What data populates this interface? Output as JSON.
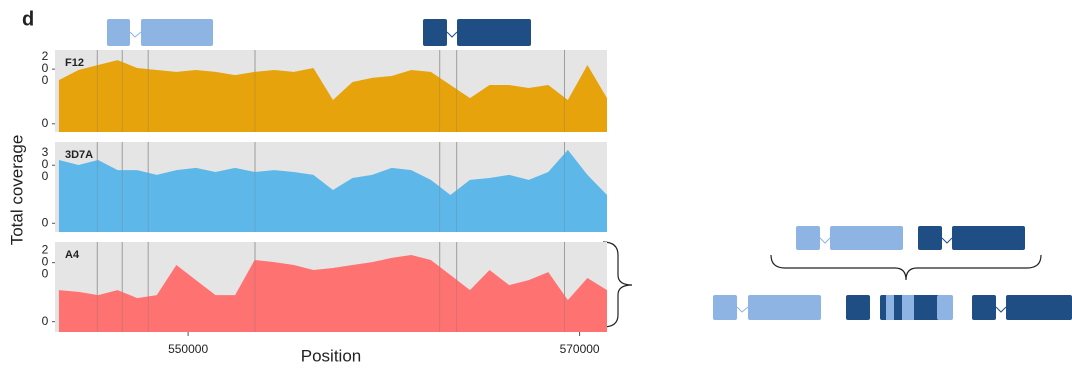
{
  "panel_label": "d",
  "chart_data": {
    "type": "area",
    "xlabel": "Position",
    "ylabel": "Total coverage",
    "x": [
      543400,
      544400,
      545400,
      546400,
      547400,
      548400,
      549400,
      550400,
      551400,
      552400,
      553400,
      554400,
      555400,
      556400,
      557400,
      558400,
      559400,
      560400,
      561400,
      562400,
      563400,
      564400,
      565400,
      566400,
      567400,
      568400,
      569400,
      570400,
      571400
    ],
    "xlim": [
      543200,
      571400
    ],
    "xticks": [
      550000,
      570000
    ],
    "guide_lines": [
      545357,
      546633,
      547959,
      553418,
      562857,
      563724,
      569235
    ],
    "panel_background": "#e5e5e5",
    "series": [
      {
        "name": "F12",
        "color": "#e69f00",
        "ylim": [
          -30,
          270
        ],
        "yticks": [
          0,
          200
        ],
        "values": [
          160,
          197,
          215,
          233,
          204,
          197,
          190,
          197,
          190,
          178,
          190,
          197,
          190,
          204,
          87,
          153,
          168,
          175,
          197,
          190,
          142,
          94,
          142,
          142,
          131,
          142,
          87,
          215,
          94
        ]
      },
      {
        "name": "3D7A",
        "color": "#56b4e9",
        "ylim": [
          -45,
          420
        ],
        "yticks": [
          0,
          300
        ],
        "values": [
          327,
          301,
          327,
          275,
          275,
          250,
          275,
          286,
          265,
          286,
          265,
          275,
          265,
          250,
          172,
          234,
          250,
          286,
          275,
          224,
          146,
          224,
          234,
          250,
          224,
          265,
          379,
          250,
          146
        ]
      },
      {
        "name": "A4",
        "color": "#ff6b6b",
        "ylim": [
          -35,
          270
        ],
        "yticks": [
          0,
          200
        ],
        "values": [
          107,
          101,
          90,
          107,
          80,
          90,
          192,
          141,
          90,
          90,
          209,
          202,
          192,
          175,
          182,
          192,
          202,
          216,
          226,
          209,
          158,
          107,
          175,
          124,
          141,
          168,
          73,
          148,
          107
        ]
      }
    ]
  }
}
